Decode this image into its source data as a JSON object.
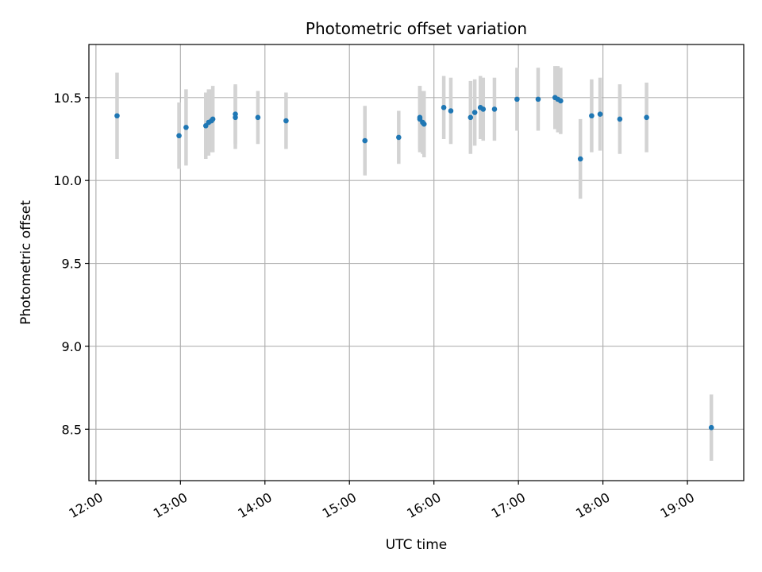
{
  "chart_data": {
    "type": "scatter",
    "title": "Photometric offset variation",
    "xlabel": "UTC time",
    "ylabel": "Photometric offset",
    "x_axis_kind": "time",
    "x_ticks": [
      "12:00",
      "13:00",
      "14:00",
      "15:00",
      "16:00",
      "17:00",
      "18:00",
      "19:00"
    ],
    "y_ticks": [
      8.5,
      9.0,
      9.5,
      10.0,
      10.5
    ],
    "xlim": [
      "11:55",
      "19:40"
    ],
    "ylim": [
      8.19,
      10.82
    ],
    "grid": true,
    "colors": {
      "point": "#1f77b4",
      "errorbar": "#d3d3d3",
      "grid": "#b0b0b0"
    },
    "points": [
      {
        "x": "12:15",
        "y": 10.39,
        "err": 0.26
      },
      {
        "x": "12:59",
        "y": 10.27,
        "err": 0.2
      },
      {
        "x": "13:04",
        "y": 10.32,
        "err": 0.23
      },
      {
        "x": "13:18",
        "y": 10.33,
        "err": 0.2
      },
      {
        "x": "13:20",
        "y": 10.35,
        "err": 0.2
      },
      {
        "x": "13:22",
        "y": 10.36,
        "err": 0.19
      },
      {
        "x": "13:23",
        "y": 10.37,
        "err": 0.2
      },
      {
        "x": "13:39",
        "y": 10.38,
        "err": 0.19
      },
      {
        "x": "13:39",
        "y": 10.4,
        "err": 0.18
      },
      {
        "x": "13:55",
        "y": 10.38,
        "err": 0.16
      },
      {
        "x": "14:15",
        "y": 10.36,
        "err": 0.17
      },
      {
        "x": "15:11",
        "y": 10.24,
        "err": 0.21
      },
      {
        "x": "15:35",
        "y": 10.26,
        "err": 0.16
      },
      {
        "x": "15:50",
        "y": 10.37,
        "err": 0.2
      },
      {
        "x": "15:50",
        "y": 10.38,
        "err": 0.19
      },
      {
        "x": "15:52",
        "y": 10.35,
        "err": 0.19
      },
      {
        "x": "15:53",
        "y": 10.34,
        "err": 0.2
      },
      {
        "x": "16:07",
        "y": 10.44,
        "err": 0.19
      },
      {
        "x": "16:12",
        "y": 10.42,
        "err": 0.2
      },
      {
        "x": "16:26",
        "y": 10.38,
        "err": 0.22
      },
      {
        "x": "16:29",
        "y": 10.41,
        "err": 0.2
      },
      {
        "x": "16:33",
        "y": 10.44,
        "err": 0.19
      },
      {
        "x": "16:35",
        "y": 10.43,
        "err": 0.19
      },
      {
        "x": "16:43",
        "y": 10.43,
        "err": 0.19
      },
      {
        "x": "16:59",
        "y": 10.49,
        "err": 0.19
      },
      {
        "x": "17:14",
        "y": 10.49,
        "err": 0.19
      },
      {
        "x": "17:26",
        "y": 10.5,
        "err": 0.19
      },
      {
        "x": "17:28",
        "y": 10.49,
        "err": 0.2
      },
      {
        "x": "17:30",
        "y": 10.48,
        "err": 0.2
      },
      {
        "x": "17:44",
        "y": 10.13,
        "err": 0.24
      },
      {
        "x": "17:52",
        "y": 10.39,
        "err": 0.22
      },
      {
        "x": "17:58",
        "y": 10.4,
        "err": 0.22
      },
      {
        "x": "18:12",
        "y": 10.37,
        "err": 0.21
      },
      {
        "x": "18:31",
        "y": 10.38,
        "err": 0.21
      },
      {
        "x": "19:17",
        "y": 8.51,
        "err": 0.2
      }
    ]
  }
}
